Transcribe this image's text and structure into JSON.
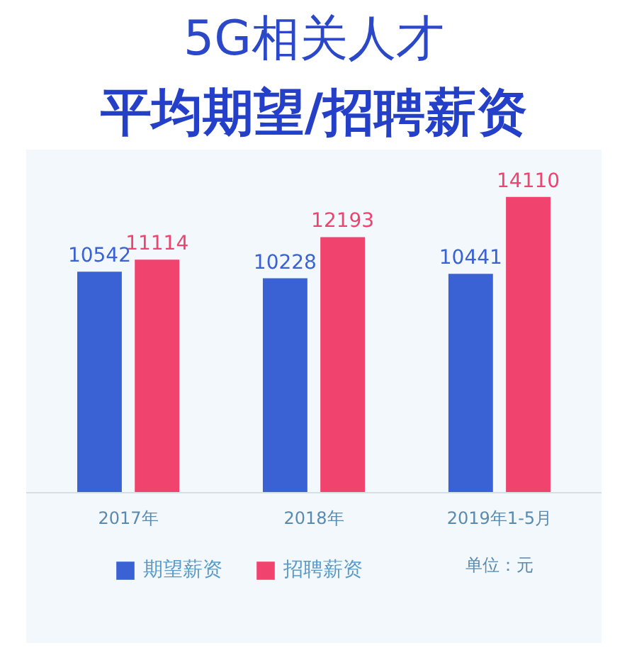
{
  "chart_data": {
    "type": "bar",
    "title": "5G相关人才",
    "subtitle": "平均期望/招聘薪资",
    "categories": [
      "2017年",
      "2018年",
      "2019年1-5月"
    ],
    "series": [
      {
        "name": "期望薪资",
        "color": "#3a62d4",
        "values": [
          10542,
          10228,
          10441
        ]
      },
      {
        "name": "招聘薪资",
        "color": "#f0436e",
        "values": [
          11114,
          12193,
          14110
        ]
      }
    ],
    "data_labels": true,
    "legend": "bottom",
    "annotations": [
      "单位：元"
    ]
  }
}
